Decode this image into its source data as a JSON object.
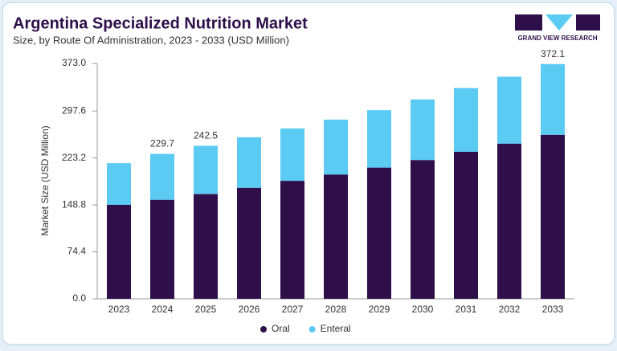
{
  "logo": "GRAND VIEW RESEARCH",
  "chart_data": {
    "type": "stacked-bar",
    "title": "Argentina Specialized Nutrition Market",
    "subtitle": "Size, by Route Of Administration, 2023 - 2033 (USD Million)",
    "y_label": "Market Size (USD Million)",
    "categories": [
      "2023",
      "2024",
      "2025",
      "2026",
      "2027",
      "2028",
      "2029",
      "2030",
      "2031",
      "2032",
      "2033"
    ],
    "series": [
      {
        "name": "Oral",
        "color": "#2e0f4a",
        "values": [
          149,
          157,
          166,
          176,
          187,
          197,
          208,
          220,
          233,
          246,
          260
        ]
      },
      {
        "name": "Enteral",
        "color": "#5ccbf4",
        "values": [
          66,
          72.7,
          76.5,
          80,
          83,
          87,
          91,
          96,
          101,
          106,
          112.1
        ]
      }
    ],
    "total_labels": [
      null,
      229.7,
      242.5,
      null,
      null,
      null,
      null,
      null,
      null,
      null,
      372.1
    ],
    "ylim": [
      0,
      373
    ],
    "yticks": [
      {
        "value": 0,
        "label": "0.0"
      },
      74.4,
      148.8,
      223.2,
      297.6,
      {
        "value": 373,
        "label": "373.0"
      }
    ],
    "legend": "bottom"
  }
}
